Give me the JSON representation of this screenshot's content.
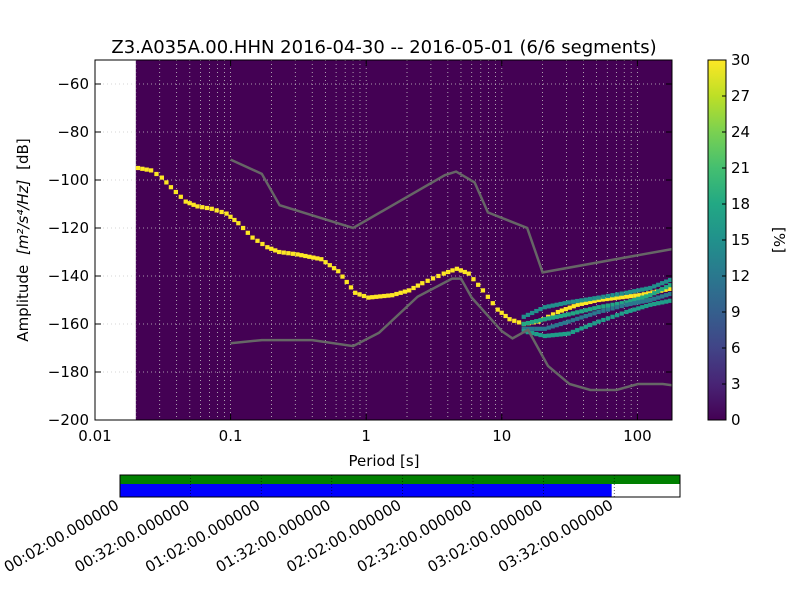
{
  "chart_data": [
    {
      "type": "heatmap",
      "title": "Z3.A035A.00.HHN   2016-04-30 -- 2016-05-01  (6/6 segments)",
      "xlabel": "Period [s]",
      "ylabel_prefix": "Amplitude",
      "ylabel_math": "[m²/s⁴/Hz]",
      "ylabel_suffix": "[dB]",
      "x_scale": "log",
      "xlim": [
        0.01,
        180
      ],
      "ylim": [
        -200,
        -50
      ],
      "x_ticks": [
        0.01,
        0.1,
        1,
        10,
        100
      ],
      "x_tick_labels": [
        "0.01",
        "0.1",
        "1",
        "10",
        "100"
      ],
      "y_ticks": [
        -200,
        -180,
        -160,
        -140,
        -120,
        -100,
        -80,
        -60
      ],
      "y_tick_labels": [
        "−200",
        "−180",
        "−160",
        "−140",
        "−120",
        "−100",
        "−80",
        "−60"
      ],
      "colormap": "viridis",
      "background_color": "#440154",
      "data_start_period": 0.02,
      "grid": true,
      "colorbar": {
        "label": "[%]",
        "range": [
          0,
          30
        ],
        "ticks": [
          0,
          3,
          6,
          9,
          12,
          15,
          18,
          21,
          24,
          27,
          30
        ],
        "tick_labels": [
          "0",
          "3",
          "6",
          "9",
          "12",
          "15",
          "18",
          "21",
          "24",
          "27",
          "30"
        ]
      },
      "psd_main": [
        [
          0.02,
          -95
        ],
        [
          0.025,
          -96
        ],
        [
          0.03,
          -99
        ],
        [
          0.035,
          -103
        ],
        [
          0.045,
          -109
        ],
        [
          0.055,
          -111
        ],
        [
          0.07,
          -112
        ],
        [
          0.09,
          -114
        ],
        [
          0.11,
          -118
        ],
        [
          0.14,
          -124
        ],
        [
          0.18,
          -128
        ],
        [
          0.22,
          -130
        ],
        [
          0.3,
          -131
        ],
        [
          0.45,
          -133
        ],
        [
          0.6,
          -138
        ],
        [
          0.8,
          -147
        ],
        [
          1.0,
          -149
        ],
        [
          1.5,
          -148
        ],
        [
          2.0,
          -146
        ],
        [
          2.5,
          -143
        ],
        [
          3.0,
          -141
        ],
        [
          3.6,
          -139
        ],
        [
          4.5,
          -137
        ],
        [
          5.5,
          -139
        ],
        [
          7.0,
          -146
        ],
        [
          9.0,
          -154
        ],
        [
          11.0,
          -158
        ],
        [
          14.0,
          -160
        ],
        [
          18.0,
          -159
        ],
        [
          25.0,
          -155
        ],
        [
          35.0,
          -152
        ],
        [
          50.0,
          -150
        ],
        [
          70.0,
          -149
        ],
        [
          100.0,
          -148
        ],
        [
          180.0,
          -145
        ]
      ],
      "psd_secondary": [
        [
          [
            14.0,
            -157
          ],
          [
            20.0,
            -153
          ],
          [
            30.0,
            -151
          ],
          [
            50.0,
            -149
          ],
          [
            80.0,
            -147
          ],
          [
            120.0,
            -145
          ],
          [
            180.0,
            -141
          ]
        ],
        [
          [
            14.0,
            -160
          ],
          [
            20.0,
            -158
          ],
          [
            30.0,
            -156
          ],
          [
            50.0,
            -153
          ],
          [
            80.0,
            -151
          ],
          [
            120.0,
            -148
          ],
          [
            180.0,
            -143
          ]
        ],
        [
          [
            14.0,
            -162
          ],
          [
            20.0,
            -162
          ],
          [
            30.0,
            -159
          ],
          [
            50.0,
            -155
          ],
          [
            80.0,
            -152
          ],
          [
            120.0,
            -150
          ],
          [
            180.0,
            -147
          ]
        ],
        [
          [
            14.0,
            -163
          ],
          [
            20.0,
            -165
          ],
          [
            30.0,
            -164
          ],
          [
            50.0,
            -159
          ],
          [
            80.0,
            -155
          ],
          [
            120.0,
            -152
          ],
          [
            180.0,
            -150
          ]
        ]
      ],
      "model_high": [
        [
          0.1,
          -91.5
        ],
        [
          0.17,
          -97.4
        ],
        [
          0.23,
          -110.5
        ],
        [
          0.8,
          -120
        ],
        [
          3.8,
          -98
        ],
        [
          4.6,
          -96.5
        ],
        [
          6.3,
          -101
        ],
        [
          7.9,
          -113.5
        ],
        [
          15.4,
          -120
        ],
        [
          20.0,
          -138.5
        ],
        [
          180.0,
          -128.8
        ]
      ],
      "model_low": [
        [
          0.1,
          -168
        ],
        [
          0.17,
          -166.7
        ],
        [
          0.4,
          -166.7
        ],
        [
          0.8,
          -169.2
        ],
        [
          1.24,
          -163.7
        ],
        [
          2.4,
          -148.6
        ],
        [
          4.3,
          -141.1
        ],
        [
          5.0,
          -141.1
        ],
        [
          6.0,
          -149
        ],
        [
          10.0,
          -163
        ],
        [
          12.0,
          -166
        ],
        [
          15.6,
          -162.4
        ],
        [
          21.9,
          -177.5
        ],
        [
          31.6,
          -185
        ],
        [
          45.0,
          -187.5
        ],
        [
          70.0,
          -187.5
        ],
        [
          101.0,
          -185
        ],
        [
          154.0,
          -185
        ],
        [
          180.0,
          -185.5
        ]
      ]
    },
    {
      "type": "timeline",
      "tick_labels": [
        "00:02:00.000000",
        "00:32:00.000000",
        "01:02:00.000000",
        "01:32:00.000000",
        "02:02:00.000000",
        "02:32:00.000000",
        "03:02:00.000000",
        "03:32:00.000000"
      ],
      "colors": {
        "coverage": "#008000",
        "used": "#0000ff"
      },
      "used_fraction": 0.878
    }
  ]
}
